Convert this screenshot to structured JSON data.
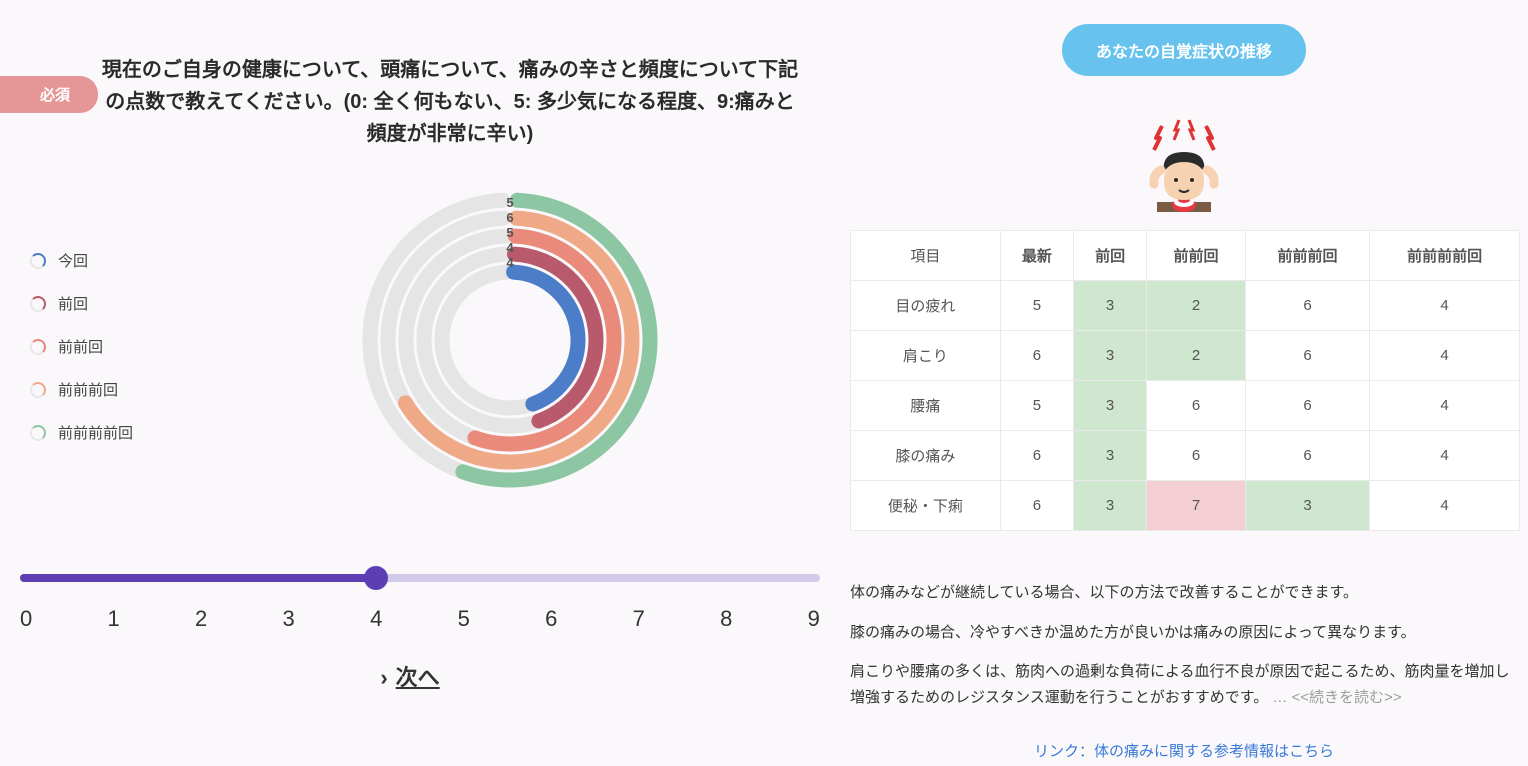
{
  "left": {
    "required_label": "必須",
    "question": "現在のご自身の健康について、頭痛について、痛みの辛さと頻度について下記の点数で教えてください。(0: 全く何もない、5: 多少気になる程度、9:痛みと頻度が非常に辛い)",
    "legend": [
      {
        "label": "今回",
        "color": "#4b7dc9"
      },
      {
        "label": "前回",
        "color": "#b85a6b"
      },
      {
        "label": "前前回",
        "color": "#e98a7a"
      },
      {
        "label": "前前前回",
        "color": "#f0a987"
      },
      {
        "label": "前前前前回",
        "color": "#8cc6a3"
      }
    ],
    "radial": {
      "max": 9,
      "gap_deg": 3,
      "track_color": "#e5e5e5",
      "rings": [
        {
          "value": 5,
          "color": "#8cc6a3",
          "label": "5"
        },
        {
          "value": 6,
          "color": "#f0a987",
          "label": "6"
        },
        {
          "value": 5,
          "color": "#e98a7a",
          "label": "5"
        },
        {
          "value": 4,
          "color": "#b85a6b",
          "label": "4"
        },
        {
          "value": 4,
          "color": "#4b7dc9",
          "label": "4"
        }
      ],
      "outer_radius": 140,
      "ring_thickness": 15,
      "ring_gap": 3
    },
    "slider": {
      "min": 0,
      "max": 9,
      "value": 4,
      "track_color": "#d3c9e8",
      "fill_color": "#5d3fb3",
      "thumb_color": "#5d3fb3",
      "tick_labels": [
        "0",
        "1",
        "2",
        "3",
        "4",
        "5",
        "6",
        "7",
        "8",
        "9"
      ]
    },
    "next_label": "次へ"
  },
  "right": {
    "button_label": "あなたの自覚症状の推移",
    "button_color": "#67c3ee",
    "table": {
      "columns": [
        "項目",
        "最新",
        "前回",
        "前前回",
        "前前前回",
        "前前前前回"
      ],
      "highlight_green": "#cfe7ce",
      "highlight_pink": "#f3cfd3",
      "rows": [
        {
          "label": "目の疲れ",
          "cells": [
            {
              "v": "5"
            },
            {
              "v": "3",
              "hl": "green"
            },
            {
              "v": "2",
              "hl": "green"
            },
            {
              "v": "6"
            },
            {
              "v": "4"
            }
          ]
        },
        {
          "label": "肩こり",
          "cells": [
            {
              "v": "6"
            },
            {
              "v": "3",
              "hl": "green"
            },
            {
              "v": "2",
              "hl": "green"
            },
            {
              "v": "6"
            },
            {
              "v": "4"
            }
          ]
        },
        {
          "label": "腰痛",
          "cells": [
            {
              "v": "5"
            },
            {
              "v": "3",
              "hl": "green"
            },
            {
              "v": "6"
            },
            {
              "v": "6"
            },
            {
              "v": "4"
            }
          ]
        },
        {
          "label": "膝の痛み",
          "cells": [
            {
              "v": "6"
            },
            {
              "v": "3",
              "hl": "green"
            },
            {
              "v": "6"
            },
            {
              "v": "6"
            },
            {
              "v": "4"
            }
          ]
        },
        {
          "label": "便秘・下痢",
          "cells": [
            {
              "v": "6"
            },
            {
              "v": "3",
              "hl": "green"
            },
            {
              "v": "7",
              "hl": "pink"
            },
            {
              "v": "3",
              "hl": "green"
            },
            {
              "v": "4"
            }
          ]
        }
      ]
    },
    "advice": [
      "体の痛みなどが継続している場合、以下の方法で改善することができます。",
      "膝の痛みの場合、冷やすべきか温めた方が良いかは痛みの原因によって異なります。",
      "肩こりや腰痛の多くは、筋肉への過剰な負荷による血行不良が原因で起こるため、筋肉量を増加し増強するためのレジスタンス運動を行うことがおすすめです。"
    ],
    "read_more": "… <<続きを読む>>",
    "reference_link": "リンク：体の痛みに関する参考情報はこちら"
  }
}
